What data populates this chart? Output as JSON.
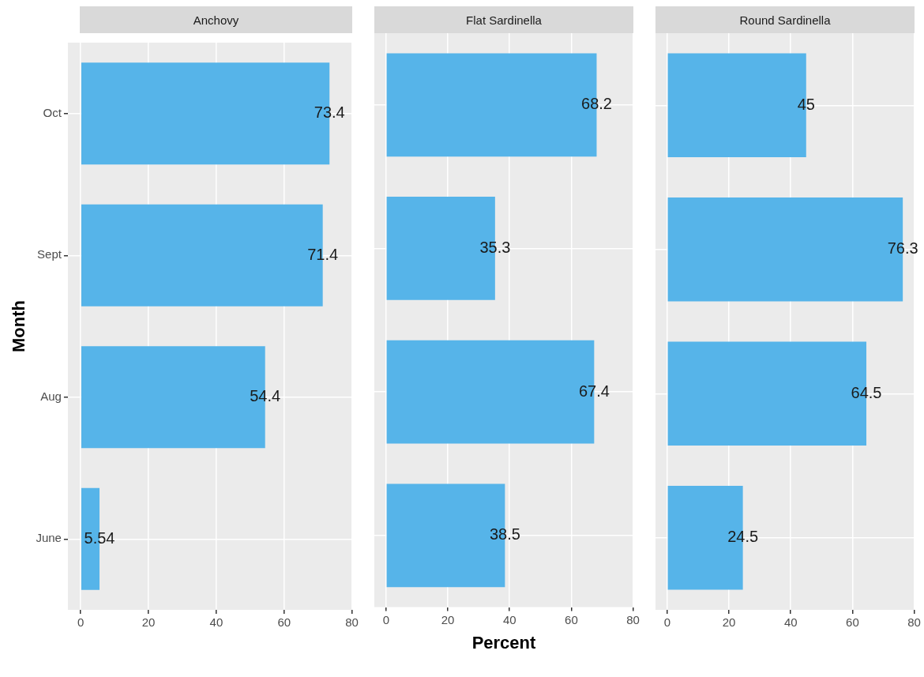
{
  "chart_data": [
    {
      "type": "bar",
      "orientation": "horizontal",
      "title": "Anchovy",
      "ylabel": "Month",
      "categories": [
        "Oct",
        "Sept",
        "Aug",
        "June"
      ],
      "values": [
        73.4,
        71.4,
        54.4,
        5.54
      ],
      "color": "#56b4e9",
      "xlim": [
        -3.8,
        80.1
      ],
      "xticks": [
        0,
        20,
        40,
        60,
        80
      ],
      "grid": true,
      "data_labels": true,
      "legend": false
    },
    {
      "type": "bar",
      "orientation": "horizontal",
      "title": "Flat Sardinella",
      "xlabel": "Percent",
      "categories": [
        null,
        null,
        null,
        null
      ],
      "values": [
        68.2,
        35.3,
        67.4,
        38.5
      ],
      "color": "#56b4e9",
      "xlim": [
        -3.8,
        80.1
      ],
      "xticks": [
        0,
        20,
        40,
        60,
        80
      ],
      "grid": true,
      "data_labels": true,
      "legend": false,
      "tick_labels": "x"
    },
    {
      "type": "bar",
      "orientation": "horizontal",
      "title": "Round Sardinella",
      "categories": [
        null,
        null,
        null,
        null
      ],
      "values": [
        45,
        76.3,
        64.5,
        24.5
      ],
      "color": "#56b4e9",
      "xlim": [
        -3.8,
        80.1
      ],
      "xticks": [
        0,
        20,
        40,
        60,
        80
      ],
      "grid": true,
      "data_labels": true,
      "legend": false,
      "tick_labels": "x"
    }
  ]
}
